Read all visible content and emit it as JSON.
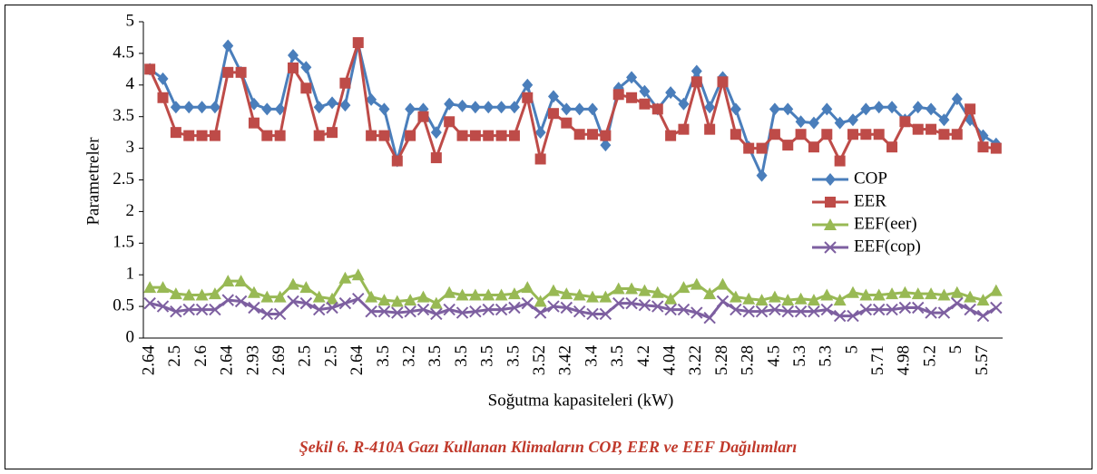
{
  "chart_data": {
    "type": "line",
    "caption": "Şekil 6. R-410A Gazı Kullanan Klimaların COP, EER ve EEF Dağılımları",
    "x_label": "Soğutma kapasiteleri (kW)",
    "y_label": "Parametreler",
    "categories": [
      "2.64",
      null,
      "2.5",
      null,
      "2.6",
      null,
      "2.64",
      null,
      "2.93",
      null,
      "2.69",
      null,
      "2.5",
      null,
      "2.5",
      null,
      "2.64",
      null,
      "3.5",
      null,
      "3.2",
      null,
      "3.5",
      null,
      "3.5",
      null,
      "3.5",
      null,
      "3.5",
      null,
      "3.52",
      null,
      "3.42",
      null,
      "3.4",
      null,
      "3.5",
      null,
      "4.2",
      null,
      "4.04",
      null,
      "3.22",
      null,
      "5.28",
      null,
      "5.28",
      null,
      "4.5",
      null,
      "5.3",
      null,
      "5.3",
      null,
      "5",
      null,
      "5.71",
      null,
      "4.98",
      null,
      "5.2",
      null,
      "5",
      null,
      "5.57",
      null
    ],
    "series": [
      {
        "name": "COP",
        "color": "#4a7ebb",
        "marker": "diamond",
        "values": [
          4.25,
          4.1,
          3.65,
          3.65,
          3.65,
          3.65,
          4.62,
          4.2,
          3.7,
          3.62,
          3.62,
          4.47,
          4.28,
          3.65,
          3.72,
          3.68,
          4.65,
          3.77,
          3.62,
          2.8,
          3.62,
          3.62,
          3.25,
          3.7,
          3.67,
          3.65,
          3.65,
          3.65,
          3.65,
          4.0,
          3.25,
          3.82,
          3.62,
          3.62,
          3.62,
          3.05,
          3.95,
          4.12,
          3.9,
          3.62,
          3.88,
          3.7,
          4.22,
          3.65,
          4.12,
          3.62,
          3.02,
          2.57,
          3.62,
          3.62,
          3.42,
          3.4,
          3.62,
          3.4,
          3.45,
          3.62,
          3.65,
          3.65,
          3.45,
          3.65,
          3.62,
          3.45,
          3.78,
          3.45,
          3.2,
          3.07
        ]
      },
      {
        "name": "EER",
        "color": "#be4b48",
        "marker": "square",
        "values": [
          4.25,
          3.8,
          3.25,
          3.2,
          3.2,
          3.2,
          4.2,
          4.2,
          3.4,
          3.2,
          3.2,
          4.27,
          3.95,
          3.2,
          3.25,
          4.03,
          4.67,
          3.2,
          3.2,
          2.8,
          3.2,
          3.5,
          2.85,
          3.42,
          3.2,
          3.2,
          3.2,
          3.2,
          3.2,
          3.8,
          2.83,
          3.55,
          3.4,
          3.22,
          3.22,
          3.2,
          3.85,
          3.8,
          3.7,
          3.62,
          3.2,
          3.3,
          4.05,
          3.3,
          4.05,
          3.22,
          3.0,
          3.0,
          3.22,
          3.05,
          3.22,
          3.02,
          3.22,
          2.8,
          3.22,
          3.22,
          3.22,
          3.02,
          3.42,
          3.3,
          3.3,
          3.22,
          3.22,
          3.62,
          3.02,
          3.0
        ]
      },
      {
        "name": "EEF(eer)",
        "color": "#98b954",
        "marker": "triangle",
        "values": [
          0.8,
          0.8,
          0.7,
          0.68,
          0.68,
          0.7,
          0.9,
          0.9,
          0.72,
          0.65,
          0.65,
          0.85,
          0.8,
          0.65,
          0.62,
          0.95,
          1.0,
          0.65,
          0.6,
          0.58,
          0.6,
          0.65,
          0.55,
          0.72,
          0.68,
          0.68,
          0.68,
          0.68,
          0.7,
          0.8,
          0.58,
          0.75,
          0.7,
          0.68,
          0.65,
          0.65,
          0.78,
          0.78,
          0.75,
          0.72,
          0.62,
          0.8,
          0.85,
          0.7,
          0.85,
          0.65,
          0.62,
          0.6,
          0.65,
          0.6,
          0.62,
          0.6,
          0.68,
          0.6,
          0.72,
          0.68,
          0.68,
          0.7,
          0.72,
          0.7,
          0.7,
          0.68,
          0.72,
          0.65,
          0.6,
          0.75
        ]
      },
      {
        "name": "EEF(cop)",
        "color": "#7d5fa0",
        "marker": "x",
        "values": [
          0.55,
          0.5,
          0.42,
          0.45,
          0.45,
          0.45,
          0.6,
          0.58,
          0.48,
          0.38,
          0.38,
          0.58,
          0.55,
          0.45,
          0.48,
          0.55,
          0.62,
          0.42,
          0.42,
          0.4,
          0.42,
          0.45,
          0.38,
          0.45,
          0.4,
          0.42,
          0.45,
          0.45,
          0.48,
          0.55,
          0.4,
          0.5,
          0.48,
          0.42,
          0.38,
          0.38,
          0.55,
          0.55,
          0.52,
          0.5,
          0.45,
          0.45,
          0.4,
          0.32,
          0.58,
          0.45,
          0.42,
          0.42,
          0.45,
          0.42,
          0.42,
          0.42,
          0.45,
          0.35,
          0.35,
          0.45,
          0.45,
          0.45,
          0.48,
          0.48,
          0.4,
          0.4,
          0.55,
          0.45,
          0.35,
          0.48
        ]
      }
    ],
    "ylim": [
      0,
      5
    ],
    "yticks": [
      0,
      0.5,
      1,
      1.5,
      2,
      2.5,
      3,
      3.5,
      4,
      4.5,
      5
    ],
    "grid": false,
    "legend": "right"
  }
}
